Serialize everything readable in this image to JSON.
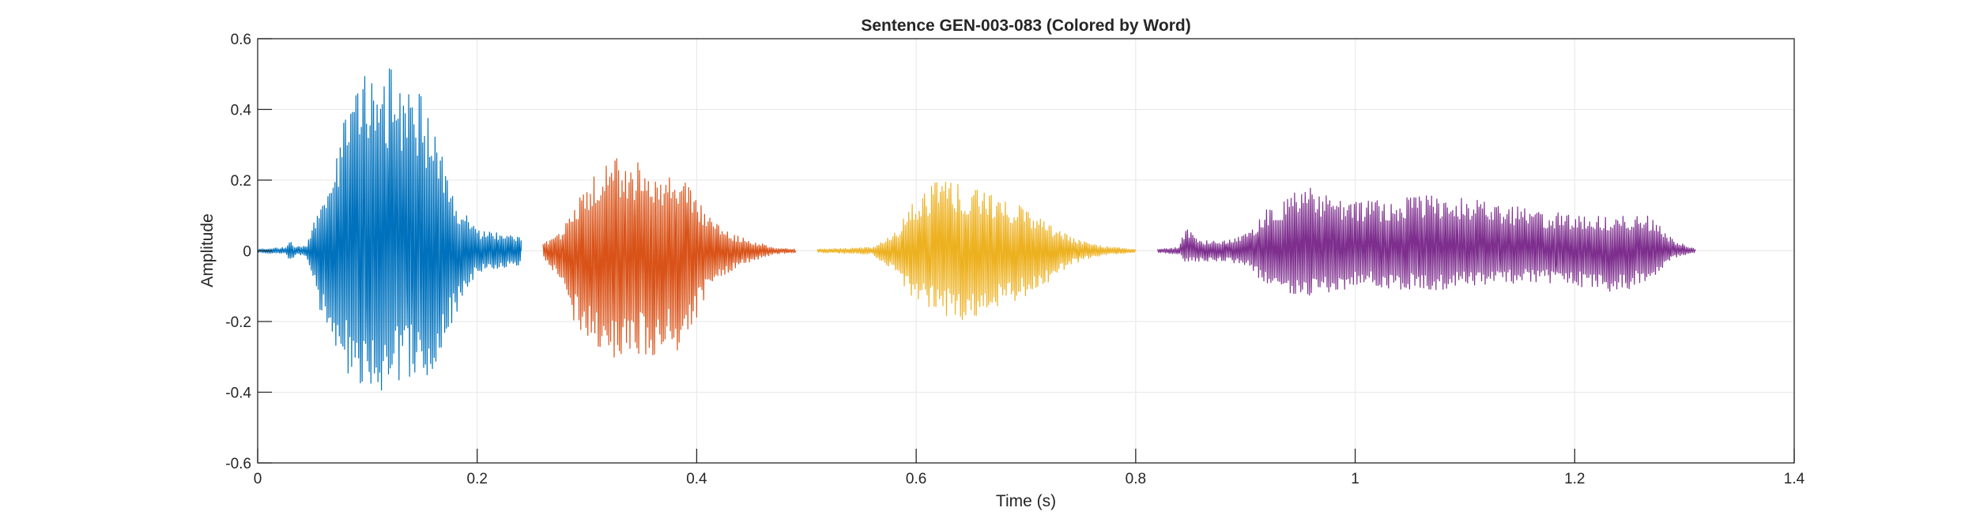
{
  "chart_data": {
    "type": "line",
    "title": "Sentence GEN-003-083 (Colored by Word)",
    "xlabel": "Time (s)",
    "ylabel": "Amplitude",
    "xlim": [
      0,
      1.4
    ],
    "ylim": [
      -0.6,
      0.6
    ],
    "xticks": [
      0,
      0.2,
      0.4,
      0.6,
      0.8,
      1,
      1.2,
      1.4
    ],
    "xtick_labels": [
      "0",
      "0.2",
      "0.4",
      "0.6",
      "0.8",
      "1",
      "1.2",
      "1.4"
    ],
    "yticks": [
      -0.6,
      -0.4,
      -0.2,
      0,
      0.2,
      0.4,
      0.6
    ],
    "ytick_labels": [
      "-0.6",
      "-0.4",
      "-0.2",
      "0",
      "0.2",
      "0.4",
      "0.6"
    ],
    "grid": true,
    "legend": "none",
    "series": [
      {
        "color": "#0072BD",
        "t_start": 0.0,
        "t_end": 0.24,
        "envelope_t": [
          0.0,
          0.025,
          0.03,
          0.035,
          0.045,
          0.055,
          0.07,
          0.09,
          0.105,
          0.12,
          0.135,
          0.15,
          0.165,
          0.18,
          0.2,
          0.22,
          0.24
        ],
        "envelope_pos": [
          0.005,
          0.01,
          0.03,
          0.01,
          0.02,
          0.12,
          0.28,
          0.5,
          0.57,
          0.52,
          0.48,
          0.45,
          0.3,
          0.15,
          0.06,
          0.05,
          0.04
        ],
        "envelope_neg": [
          0.005,
          0.01,
          0.03,
          0.01,
          0.02,
          0.15,
          0.3,
          0.38,
          0.42,
          0.38,
          0.36,
          0.4,
          0.3,
          0.2,
          0.06,
          0.05,
          0.04
        ]
      },
      {
        "color": "#D95319",
        "t_start": 0.26,
        "t_end": 0.49,
        "envelope_t": [
          0.26,
          0.275,
          0.29,
          0.31,
          0.33,
          0.35,
          0.37,
          0.39,
          0.41,
          0.43,
          0.45,
          0.47,
          0.49
        ],
        "envelope_pos": [
          0.02,
          0.05,
          0.15,
          0.24,
          0.27,
          0.25,
          0.22,
          0.2,
          0.1,
          0.05,
          0.03,
          0.01,
          0.005
        ],
        "envelope_neg": [
          0.02,
          0.08,
          0.22,
          0.28,
          0.32,
          0.3,
          0.3,
          0.28,
          0.12,
          0.06,
          0.03,
          0.01,
          0.005
        ]
      },
      {
        "color": "#EDB120",
        "t_start": 0.51,
        "t_end": 0.8,
        "envelope_t": [
          0.51,
          0.54,
          0.56,
          0.58,
          0.6,
          0.62,
          0.64,
          0.66,
          0.68,
          0.7,
          0.72,
          0.74,
          0.76,
          0.78,
          0.8
        ],
        "envelope_pos": [
          0.005,
          0.008,
          0.01,
          0.05,
          0.15,
          0.2,
          0.19,
          0.17,
          0.15,
          0.12,
          0.08,
          0.04,
          0.02,
          0.01,
          0.005
        ],
        "envelope_neg": [
          0.005,
          0.008,
          0.01,
          0.06,
          0.15,
          0.18,
          0.2,
          0.18,
          0.16,
          0.13,
          0.09,
          0.04,
          0.02,
          0.01,
          0.005
        ]
      },
      {
        "color": "#7E2F8E",
        "t_start": 0.82,
        "t_end": 1.31,
        "envelope_t": [
          0.82,
          0.84,
          0.845,
          0.86,
          0.88,
          0.9,
          0.92,
          0.94,
          0.96,
          0.98,
          1.0,
          1.04,
          1.08,
          1.12,
          1.16,
          1.2,
          1.24,
          1.27,
          1.29,
          1.31
        ],
        "envelope_pos": [
          0.005,
          0.01,
          0.07,
          0.03,
          0.03,
          0.05,
          0.12,
          0.16,
          0.18,
          0.15,
          0.14,
          0.15,
          0.16,
          0.14,
          0.12,
          0.1,
          0.1,
          0.1,
          0.03,
          0.005
        ],
        "envelope_neg": [
          0.005,
          0.01,
          0.03,
          0.03,
          0.03,
          0.04,
          0.1,
          0.12,
          0.13,
          0.12,
          0.1,
          0.11,
          0.11,
          0.1,
          0.09,
          0.1,
          0.12,
          0.08,
          0.02,
          0.005
        ]
      }
    ]
  }
}
